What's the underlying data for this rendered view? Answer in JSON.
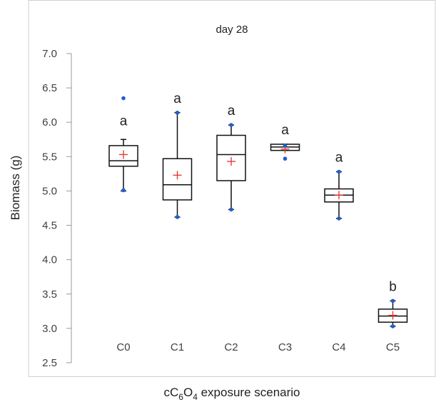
{
  "chart_data": {
    "type": "box",
    "title": "day 28",
    "ylabel": "Biomass (g)",
    "xlabel_parts": [
      "cC",
      "6",
      "O",
      "4",
      " exposure scenario"
    ],
    "ylim": [
      2.5,
      7.0
    ],
    "yticks": [
      "2.5",
      "3.0",
      "3.5",
      "4.0",
      "4.5",
      "5.0",
      "5.5",
      "6.0",
      "6.5",
      "7.0"
    ],
    "categories": [
      "C0",
      "C1",
      "C2",
      "C3",
      "C4",
      "C5"
    ],
    "groups": [
      {
        "name": "C0",
        "whisker_low": 5.0,
        "q1": 5.36,
        "median": 5.44,
        "q3": 5.66,
        "whisker_high": 5.75,
        "mean": 5.53,
        "outliers": [
          5.01,
          6.35
        ],
        "letter": "a"
      },
      {
        "name": "C1",
        "whisker_low": 4.62,
        "q1": 4.87,
        "median": 5.09,
        "q3": 5.47,
        "whisker_high": 6.14,
        "mean": 5.23,
        "outliers": [
          4.62,
          6.14
        ],
        "letter": "a"
      },
      {
        "name": "C2",
        "whisker_low": 4.73,
        "q1": 5.15,
        "median": 5.53,
        "q3": 5.81,
        "whisker_high": 5.96,
        "mean": 5.43,
        "outliers": [
          4.73,
          5.96
        ],
        "letter": "a"
      },
      {
        "name": "C3",
        "whisker_low": 5.59,
        "q1": 5.59,
        "median": 5.64,
        "q3": 5.68,
        "whisker_high": 5.68,
        "mean": 5.61,
        "outliers": [
          5.47,
          5.66
        ],
        "letter": "a"
      },
      {
        "name": "C4",
        "whisker_low": 4.6,
        "q1": 4.84,
        "median": 4.94,
        "q3": 5.03,
        "whisker_high": 5.28,
        "mean": 4.94,
        "outliers": [
          4.6,
          5.28
        ],
        "letter": "a"
      },
      {
        "name": "C5",
        "whisker_low": 3.03,
        "q1": 3.09,
        "median": 3.18,
        "q3": 3.28,
        "whisker_high": 3.4,
        "mean": 3.19,
        "outliers": [
          3.03,
          3.4
        ],
        "letter": "b"
      }
    ],
    "colors": {
      "box": "#111111",
      "mean": "#e8302b",
      "outlier": "#1f5fcc",
      "axis": "#9a9a9a"
    },
    "grid": false,
    "legend": "none"
  }
}
